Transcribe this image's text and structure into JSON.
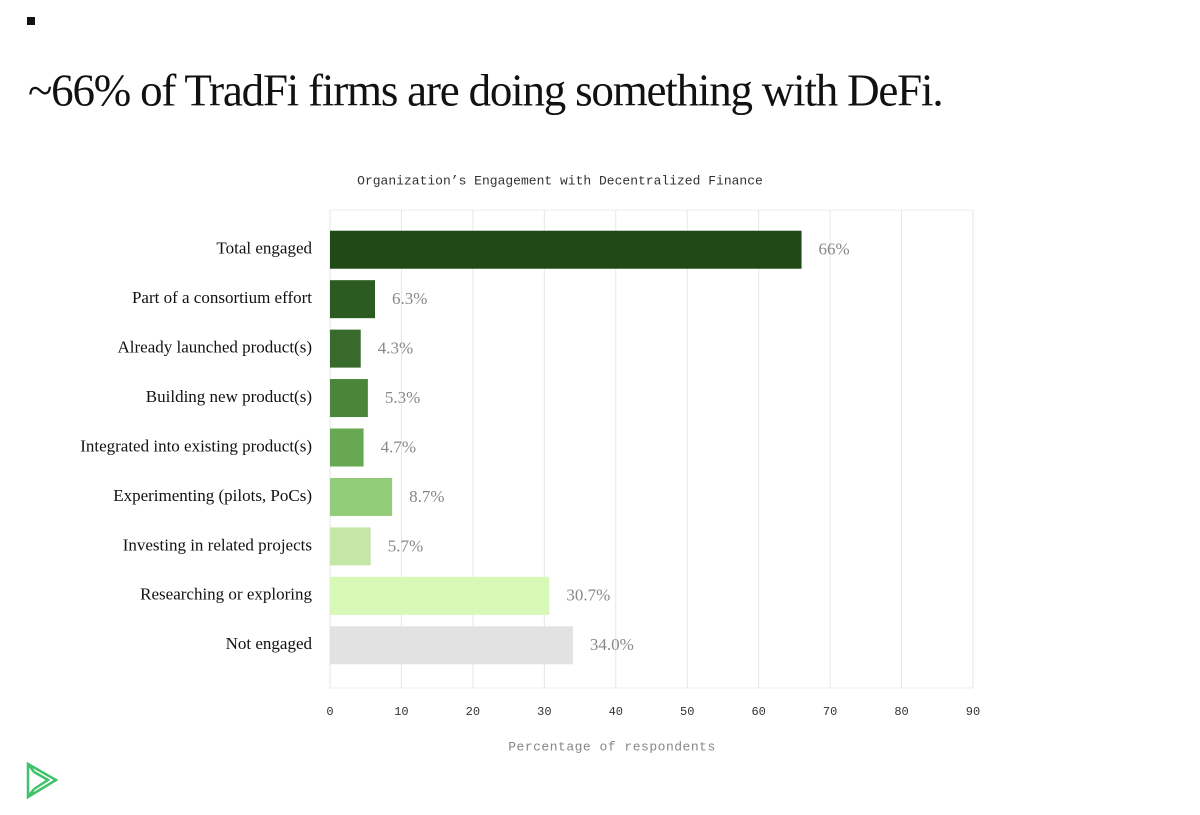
{
  "heading": "~66% of TradFi firms are doing something with DeFi.",
  "chart_data": {
    "type": "bar",
    "orientation": "horizontal",
    "title": "Organization’s Engagement with Decentralized Finance",
    "categories": [
      "Total engaged",
      "Part of a consortium effort",
      "Already launched product(s)",
      "Building new product(s)",
      "Integrated into existing product(s)",
      "Experimenting (pilots, PoCs)",
      "Investing in related projects",
      "Researching or exploring",
      "Not engaged"
    ],
    "values": [
      66,
      6.3,
      4.3,
      5.3,
      4.7,
      8.7,
      5.7,
      30.7,
      34.0
    ],
    "value_labels": [
      "66%",
      "6.3%",
      "4.3%",
      "5.3%",
      "4.7%",
      "8.7%",
      "5.7%",
      "30.7%",
      "34.0%"
    ],
    "colors": [
      "#1f4a17",
      "#2b5b21",
      "#386b2b",
      "#4a853a",
      "#68a852",
      "#93cc78",
      "#c5e6a7",
      "#d8f8b8",
      "#e2e2e2"
    ],
    "xlim": [
      0,
      90
    ],
    "xticks": [
      0,
      10,
      20,
      30,
      40,
      50,
      60,
      70,
      80,
      90
    ],
    "xlabel": "Percentage of respondents",
    "grid": true
  }
}
